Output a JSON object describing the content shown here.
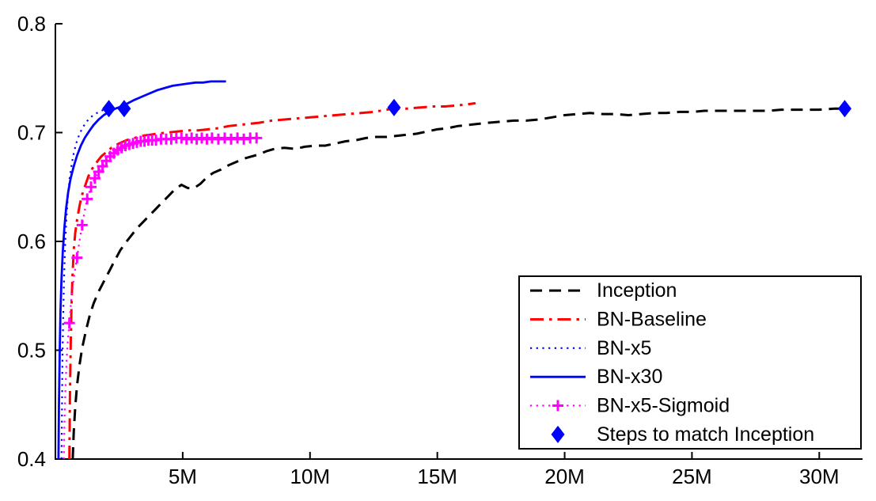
{
  "chart_data": {
    "type": "line",
    "title": "",
    "xlabel": "",
    "ylabel": "",
    "xlim": [
      0,
      31.7
    ],
    "ylim": [
      0.4,
      0.8
    ],
    "grid": false,
    "legend_position": "lower right",
    "axis_color": "#000000",
    "background": "#ffffff",
    "xticks": [
      {
        "v": 5,
        "label": "5M"
      },
      {
        "v": 10,
        "label": "10M"
      },
      {
        "v": 15,
        "label": "15M"
      },
      {
        "v": 20,
        "label": "20M"
      },
      {
        "v": 25,
        "label": "25M"
      },
      {
        "v": 30,
        "label": "30M"
      }
    ],
    "yticks": [
      {
        "v": 0.4,
        "label": "0.4"
      },
      {
        "v": 0.5,
        "label": "0.5"
      },
      {
        "v": 0.6,
        "label": "0.6"
      },
      {
        "v": 0.7,
        "label": "0.7"
      },
      {
        "v": 0.8,
        "label": "0.8"
      }
    ],
    "series": [
      {
        "name": "Inception",
        "color": "#000000",
        "style": "dashed",
        "width": 3,
        "marker": "none",
        "points": [
          [
            0.68,
            0.4
          ],
          [
            0.72,
            0.425
          ],
          [
            0.78,
            0.448
          ],
          [
            0.85,
            0.468
          ],
          [
            0.95,
            0.487
          ],
          [
            1.05,
            0.502
          ],
          [
            1.2,
            0.518
          ],
          [
            1.35,
            0.532
          ],
          [
            1.5,
            0.543
          ],
          [
            1.7,
            0.554
          ],
          [
            1.9,
            0.563
          ],
          [
            2.1,
            0.572
          ],
          [
            2.3,
            0.581
          ],
          [
            2.55,
            0.592
          ],
          [
            2.8,
            0.6
          ],
          [
            3.0,
            0.606
          ],
          [
            3.2,
            0.612
          ],
          [
            3.45,
            0.618
          ],
          [
            3.7,
            0.624
          ],
          [
            3.95,
            0.63
          ],
          [
            4.2,
            0.636
          ],
          [
            4.45,
            0.642
          ],
          [
            4.7,
            0.648
          ],
          [
            4.95,
            0.652
          ],
          [
            5.2,
            0.649
          ],
          [
            5.45,
            0.649
          ],
          [
            5.7,
            0.653
          ],
          [
            5.95,
            0.659
          ],
          [
            6.2,
            0.663
          ],
          [
            6.5,
            0.666
          ],
          [
            6.8,
            0.67
          ],
          [
            7.1,
            0.673
          ],
          [
            7.4,
            0.676
          ],
          [
            7.7,
            0.678
          ],
          [
            8.0,
            0.68
          ],
          [
            8.3,
            0.683
          ],
          [
            8.6,
            0.685
          ],
          [
            9.0,
            0.686
          ],
          [
            9.4,
            0.685
          ],
          [
            9.8,
            0.687
          ],
          [
            10.2,
            0.688
          ],
          [
            10.6,
            0.688
          ],
          [
            11.0,
            0.69
          ],
          [
            11.4,
            0.692
          ],
          [
            11.8,
            0.693
          ],
          [
            12.2,
            0.695
          ],
          [
            12.6,
            0.696
          ],
          [
            13.0,
            0.696
          ],
          [
            13.4,
            0.697
          ],
          [
            13.8,
            0.698
          ],
          [
            14.2,
            0.699
          ],
          [
            14.6,
            0.701
          ],
          [
            15.0,
            0.703
          ],
          [
            15.4,
            0.704
          ],
          [
            15.8,
            0.706
          ],
          [
            16.2,
            0.707
          ],
          [
            16.6,
            0.708
          ],
          [
            17.0,
            0.709
          ],
          [
            17.5,
            0.71
          ],
          [
            18.0,
            0.711
          ],
          [
            18.5,
            0.711
          ],
          [
            19.0,
            0.712
          ],
          [
            19.5,
            0.714
          ],
          [
            20.0,
            0.716
          ],
          [
            20.5,
            0.717
          ],
          [
            21.0,
            0.718
          ],
          [
            21.5,
            0.717
          ],
          [
            22.0,
            0.717
          ],
          [
            22.5,
            0.716
          ],
          [
            23.0,
            0.717
          ],
          [
            23.5,
            0.718
          ],
          [
            24.0,
            0.718
          ],
          [
            24.5,
            0.719
          ],
          [
            25.0,
            0.719
          ],
          [
            25.5,
            0.72
          ],
          [
            26.0,
            0.72
          ],
          [
            26.5,
            0.72
          ],
          [
            27.0,
            0.72
          ],
          [
            27.5,
            0.72
          ],
          [
            28.0,
            0.72
          ],
          [
            28.5,
            0.721
          ],
          [
            29.0,
            0.721
          ],
          [
            29.5,
            0.721
          ],
          [
            30.0,
            0.721
          ],
          [
            30.6,
            0.722
          ],
          [
            31.2,
            0.722
          ]
        ]
      },
      {
        "name": "BN-Baseline",
        "color": "#ff0000",
        "style": "dashdot",
        "width": 3,
        "marker": "none",
        "points": [
          [
            0.55,
            0.4
          ],
          [
            0.57,
            0.452
          ],
          [
            0.6,
            0.503
          ],
          [
            0.63,
            0.54
          ],
          [
            0.67,
            0.568
          ],
          [
            0.72,
            0.592
          ],
          [
            0.78,
            0.608
          ],
          [
            0.85,
            0.62
          ],
          [
            0.95,
            0.633
          ],
          [
            1.05,
            0.643
          ],
          [
            1.15,
            0.65
          ],
          [
            1.3,
            0.66
          ],
          [
            1.45,
            0.667
          ],
          [
            1.6,
            0.672
          ],
          [
            1.8,
            0.678
          ],
          [
            2.0,
            0.682
          ],
          [
            2.2,
            0.686
          ],
          [
            2.5,
            0.69
          ],
          [
            2.8,
            0.693
          ],
          [
            3.1,
            0.695
          ],
          [
            3.4,
            0.697
          ],
          [
            3.7,
            0.698
          ],
          [
            4.0,
            0.699
          ],
          [
            4.4,
            0.7
          ],
          [
            4.8,
            0.701
          ],
          [
            5.2,
            0.702
          ],
          [
            5.6,
            0.702
          ],
          [
            6.0,
            0.703
          ],
          [
            6.4,
            0.704
          ],
          [
            6.8,
            0.706
          ],
          [
            7.2,
            0.707
          ],
          [
            7.6,
            0.708
          ],
          [
            8.0,
            0.709
          ],
          [
            8.5,
            0.711
          ],
          [
            9.0,
            0.712
          ],
          [
            9.5,
            0.713
          ],
          [
            10.0,
            0.714
          ],
          [
            10.5,
            0.715
          ],
          [
            11.0,
            0.716
          ],
          [
            11.5,
            0.717
          ],
          [
            12.0,
            0.718
          ],
          [
            12.5,
            0.719
          ],
          [
            13.0,
            0.721
          ],
          [
            13.3,
            0.722
          ],
          [
            13.8,
            0.722
          ],
          [
            14.3,
            0.723
          ],
          [
            14.8,
            0.724
          ],
          [
            15.3,
            0.724
          ],
          [
            15.8,
            0.725
          ],
          [
            16.2,
            0.726
          ],
          [
            16.5,
            0.727
          ]
        ]
      },
      {
        "name": "BN-x5",
        "color": "#0000ff",
        "style": "dotted",
        "width": 2.2,
        "marker": "none",
        "points": [
          [
            0.24,
            0.4
          ],
          [
            0.26,
            0.45
          ],
          [
            0.28,
            0.495
          ],
          [
            0.31,
            0.535
          ],
          [
            0.34,
            0.565
          ],
          [
            0.38,
            0.594
          ],
          [
            0.43,
            0.62
          ],
          [
            0.49,
            0.641
          ],
          [
            0.56,
            0.658
          ],
          [
            0.64,
            0.671
          ],
          [
            0.73,
            0.682
          ],
          [
            0.83,
            0.691
          ],
          [
            0.95,
            0.699
          ],
          [
            1.08,
            0.705
          ],
          [
            1.22,
            0.71
          ],
          [
            1.38,
            0.714
          ],
          [
            1.55,
            0.717
          ],
          [
            1.72,
            0.719
          ],
          [
            1.9,
            0.721
          ],
          [
            2.05,
            0.721
          ],
          [
            2.2,
            0.722
          ]
        ]
      },
      {
        "name": "BN-x30",
        "color": "#0000ff",
        "style": "solid",
        "width": 2.8,
        "marker": "none",
        "points": [
          [
            0.12,
            0.4
          ],
          [
            0.14,
            0.45
          ],
          [
            0.17,
            0.5
          ],
          [
            0.2,
            0.535
          ],
          [
            0.24,
            0.565
          ],
          [
            0.29,
            0.59
          ],
          [
            0.35,
            0.612
          ],
          [
            0.42,
            0.63
          ],
          [
            0.5,
            0.645
          ],
          [
            0.6,
            0.658
          ],
          [
            0.72,
            0.669
          ],
          [
            0.85,
            0.679
          ],
          [
            1.0,
            0.688
          ],
          [
            1.15,
            0.695
          ],
          [
            1.32,
            0.701
          ],
          [
            1.5,
            0.707
          ],
          [
            1.7,
            0.712
          ],
          [
            1.9,
            0.716
          ],
          [
            2.1,
            0.719
          ],
          [
            2.35,
            0.722
          ],
          [
            2.6,
            0.724
          ],
          [
            2.85,
            0.727
          ],
          [
            3.1,
            0.73
          ],
          [
            3.4,
            0.733
          ],
          [
            3.7,
            0.736
          ],
          [
            4.0,
            0.739
          ],
          [
            4.3,
            0.741
          ],
          [
            4.6,
            0.743
          ],
          [
            4.9,
            0.744
          ],
          [
            5.2,
            0.745
          ],
          [
            5.5,
            0.746
          ],
          [
            5.8,
            0.746
          ],
          [
            6.1,
            0.747
          ],
          [
            6.4,
            0.747
          ],
          [
            6.7,
            0.747
          ]
        ]
      },
      {
        "name": "BN-x5-Sigmoid",
        "color": "#ff00ff",
        "style": "dotted",
        "width": 2.2,
        "marker": "plus",
        "points": [
          [
            0.33,
            0.4
          ],
          [
            0.36,
            0.438
          ],
          [
            0.4,
            0.468
          ],
          [
            0.44,
            0.492
          ],
          [
            0.49,
            0.51
          ],
          [
            0.55,
            0.525
          ],
          [
            0.62,
            0.545
          ],
          [
            0.7,
            0.562
          ],
          [
            0.78,
            0.575
          ],
          [
            0.85,
            0.585
          ],
          [
            0.95,
            0.601
          ],
          [
            1.05,
            0.615
          ],
          [
            1.15,
            0.628
          ],
          [
            1.25,
            0.639
          ],
          [
            1.4,
            0.65
          ],
          [
            1.55,
            0.658
          ],
          [
            1.7,
            0.664
          ],
          [
            1.85,
            0.669
          ],
          [
            2.0,
            0.674
          ],
          [
            2.15,
            0.678
          ],
          [
            2.3,
            0.681
          ],
          [
            2.45,
            0.684
          ],
          [
            2.6,
            0.686
          ],
          [
            2.75,
            0.688
          ],
          [
            2.9,
            0.689
          ],
          [
            3.05,
            0.69
          ],
          [
            3.2,
            0.691
          ],
          [
            3.35,
            0.692
          ],
          [
            3.5,
            0.692
          ],
          [
            3.65,
            0.693
          ],
          [
            3.8,
            0.693
          ],
          [
            3.95,
            0.693
          ],
          [
            4.15,
            0.694
          ],
          [
            4.35,
            0.694
          ],
          [
            4.55,
            0.694
          ],
          [
            4.75,
            0.695
          ],
          [
            4.95,
            0.695
          ],
          [
            5.15,
            0.694
          ],
          [
            5.35,
            0.695
          ],
          [
            5.55,
            0.694
          ],
          [
            5.75,
            0.695
          ],
          [
            5.95,
            0.694
          ],
          [
            6.15,
            0.695
          ],
          [
            6.4,
            0.694
          ],
          [
            6.65,
            0.695
          ],
          [
            6.9,
            0.694
          ],
          [
            7.15,
            0.695
          ],
          [
            7.4,
            0.694
          ],
          [
            7.65,
            0.695
          ],
          [
            7.9,
            0.695
          ]
        ],
        "marker_points": [
          [
            0.55,
            0.525
          ],
          [
            0.85,
            0.585
          ],
          [
            1.05,
            0.615
          ],
          [
            1.25,
            0.639
          ],
          [
            1.4,
            0.65
          ],
          [
            1.55,
            0.658
          ],
          [
            1.7,
            0.664
          ],
          [
            1.85,
            0.669
          ],
          [
            2.0,
            0.674
          ],
          [
            2.15,
            0.678
          ],
          [
            2.3,
            0.681
          ],
          [
            2.45,
            0.684
          ],
          [
            2.6,
            0.686
          ],
          [
            2.75,
            0.688
          ],
          [
            2.9,
            0.689
          ],
          [
            3.05,
            0.69
          ],
          [
            3.2,
            0.691
          ],
          [
            3.35,
            0.692
          ],
          [
            3.5,
            0.692
          ],
          [
            3.65,
            0.693
          ],
          [
            3.8,
            0.693
          ],
          [
            3.95,
            0.693
          ],
          [
            4.15,
            0.694
          ],
          [
            4.35,
            0.694
          ],
          [
            4.55,
            0.694
          ],
          [
            4.75,
            0.695
          ],
          [
            4.95,
            0.695
          ],
          [
            5.15,
            0.694
          ],
          [
            5.35,
            0.695
          ],
          [
            5.55,
            0.694
          ],
          [
            5.75,
            0.695
          ],
          [
            5.95,
            0.694
          ],
          [
            6.15,
            0.695
          ],
          [
            6.4,
            0.694
          ],
          [
            6.65,
            0.695
          ],
          [
            6.9,
            0.694
          ],
          [
            7.15,
            0.695
          ],
          [
            7.4,
            0.694
          ],
          [
            7.65,
            0.695
          ],
          [
            7.9,
            0.695
          ]
        ]
      },
      {
        "name": "Steps to match Inception",
        "color": "#0000ff",
        "style": "none",
        "width": 0,
        "marker": "diamond",
        "points": [
          [
            2.1,
            0.722
          ],
          [
            2.7,
            0.722
          ],
          [
            13.3,
            0.723
          ],
          [
            31.0,
            0.722
          ]
        ]
      }
    ]
  }
}
